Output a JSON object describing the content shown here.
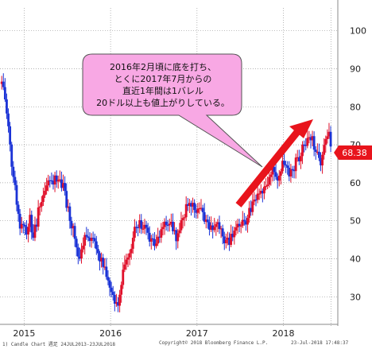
{
  "chart_data": {
    "type": "candlestick",
    "title": "",
    "xlabel": "",
    "ylabel": "",
    "ylim": [
      24,
      106
    ],
    "yticks": [
      30,
      40,
      50,
      60,
      70,
      80,
      90,
      100
    ],
    "xticks": [
      "2015",
      "2016",
      "2017",
      "2018"
    ],
    "last_value": "68.38",
    "grid": true,
    "up_color": "#e0102a",
    "down_color": "#1a32d6",
    "series": [
      {
        "values": [
          [
            2014.75,
            86
          ],
          [
            2014.8,
            77
          ],
          [
            2014.85,
            66
          ],
          [
            2014.89,
            60
          ],
          [
            2014.92,
            53
          ],
          [
            2014.95,
            48
          ],
          [
            2014.98,
            50
          ],
          [
            2015.02,
            47
          ],
          [
            2015.06,
            51
          ],
          [
            2015.1,
            46
          ],
          [
            2015.14,
            49
          ],
          [
            2015.18,
            55
          ],
          [
            2015.22,
            57
          ],
          [
            2015.26,
            59
          ],
          [
            2015.3,
            61
          ],
          [
            2015.34,
            60
          ],
          [
            2015.38,
            62
          ],
          [
            2015.42,
            60
          ],
          [
            2015.46,
            58
          ],
          [
            2015.5,
            54
          ],
          [
            2015.55,
            49
          ],
          [
            2015.6,
            45
          ],
          [
            2015.64,
            40
          ],
          [
            2015.68,
            44
          ],
          [
            2015.72,
            47
          ],
          [
            2015.76,
            46
          ],
          [
            2015.8,
            45
          ],
          [
            2015.84,
            42
          ],
          [
            2015.88,
            40
          ],
          [
            2015.92,
            38
          ],
          [
            2015.96,
            36
          ],
          [
            2016.0,
            33
          ],
          [
            2016.04,
            29
          ],
          [
            2016.08,
            28
          ],
          [
            2016.12,
            34
          ],
          [
            2016.16,
            38
          ],
          [
            2016.2,
            40
          ],
          [
            2016.24,
            44
          ],
          [
            2016.28,
            47
          ],
          [
            2016.32,
            50
          ],
          [
            2016.36,
            49
          ],
          [
            2016.4,
            48
          ],
          [
            2016.44,
            46
          ],
          [
            2016.48,
            44
          ],
          [
            2016.52,
            43
          ],
          [
            2016.56,
            46
          ],
          [
            2016.6,
            47
          ],
          [
            2016.64,
            49
          ],
          [
            2016.68,
            50
          ],
          [
            2016.72,
            48
          ],
          [
            2016.76,
            45
          ],
          [
            2016.8,
            49
          ],
          [
            2016.84,
            52
          ],
          [
            2016.88,
            53
          ],
          [
            2016.92,
            54
          ],
          [
            2016.96,
            53
          ],
          [
            2017.0,
            53
          ],
          [
            2017.04,
            52
          ],
          [
            2017.08,
            51
          ],
          [
            2017.12,
            49
          ],
          [
            2017.16,
            48
          ],
          [
            2017.2,
            50
          ],
          [
            2017.24,
            49
          ],
          [
            2017.28,
            47
          ],
          [
            2017.32,
            45
          ],
          [
            2017.36,
            44
          ],
          [
            2017.4,
            46
          ],
          [
            2017.44,
            47
          ],
          [
            2017.48,
            49
          ],
          [
            2017.52,
            49
          ],
          [
            2017.56,
            50
          ],
          [
            2017.6,
            52
          ],
          [
            2017.64,
            55
          ],
          [
            2017.68,
            57
          ],
          [
            2017.72,
            56
          ],
          [
            2017.76,
            57
          ],
          [
            2017.8,
            59
          ],
          [
            2017.84,
            62
          ],
          [
            2017.88,
            63
          ],
          [
            2017.92,
            61
          ],
          [
            2017.96,
            64
          ],
          [
            2018.0,
            66
          ],
          [
            2018.04,
            64
          ],
          [
            2018.08,
            62
          ],
          [
            2018.12,
            64
          ],
          [
            2018.16,
            66
          ],
          [
            2018.2,
            68
          ],
          [
            2018.24,
            69
          ],
          [
            2018.28,
            71
          ],
          [
            2018.32,
            72
          ],
          [
            2018.36,
            70
          ],
          [
            2018.4,
            66
          ],
          [
            2018.44,
            65
          ],
          [
            2018.48,
            70
          ],
          [
            2018.52,
            74
          ],
          [
            2018.56,
            69
          ]
        ]
      }
    ]
  },
  "annotation": {
    "lines": [
      "2016年2月頃に底を打ち、",
      "とくに2017年7月からの",
      "直近1年間は1バレル",
      "20ドル以上も値上がりしている。"
    ],
    "fill_color": "#f8a8e4",
    "arrow_color": "#e8141c"
  },
  "footer": {
    "left": "1) Candle Chart  週足 24JUL2013-23JUL2018",
    "center": "Copyright© 2018 Bloomberg Finance L.P.",
    "right": "23-Jul-2018 17:48:37"
  }
}
